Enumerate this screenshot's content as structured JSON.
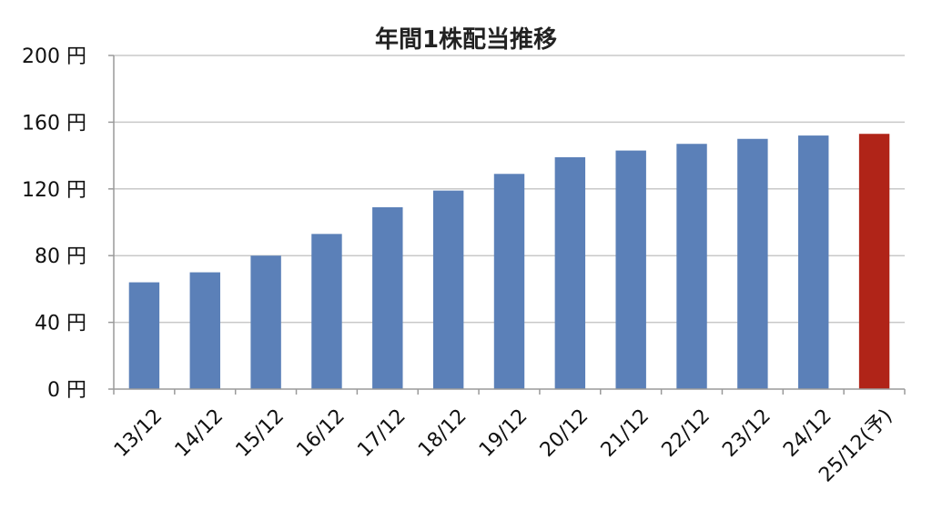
{
  "chart_data": {
    "type": "bar",
    "title": "年間1株配当推移",
    "xlabel": "",
    "ylabel": "",
    "categories": [
      "13/12",
      "14/12",
      "15/12",
      "16/12",
      "17/12",
      "18/12",
      "19/12",
      "20/12",
      "21/12",
      "22/12",
      "23/12",
      "24/12",
      "25/12(予)"
    ],
    "values": [
      64,
      70,
      80,
      93,
      109,
      119,
      129,
      139,
      143,
      147,
      150,
      152,
      153
    ],
    "ylim": [
      0,
      200
    ],
    "yticks": [
      0,
      40,
      80,
      120,
      160,
      200
    ],
    "ytick_labels": [
      "0 円",
      "40 円",
      "80 円",
      "120 円",
      "160 円",
      "200 円"
    ],
    "grid": true,
    "colors": {
      "actual": "#5b80b8",
      "forecast": "#b02418",
      "grid": "#c8c8c8",
      "axis": "#9a9a9a"
    },
    "highlight_index": 12
  }
}
